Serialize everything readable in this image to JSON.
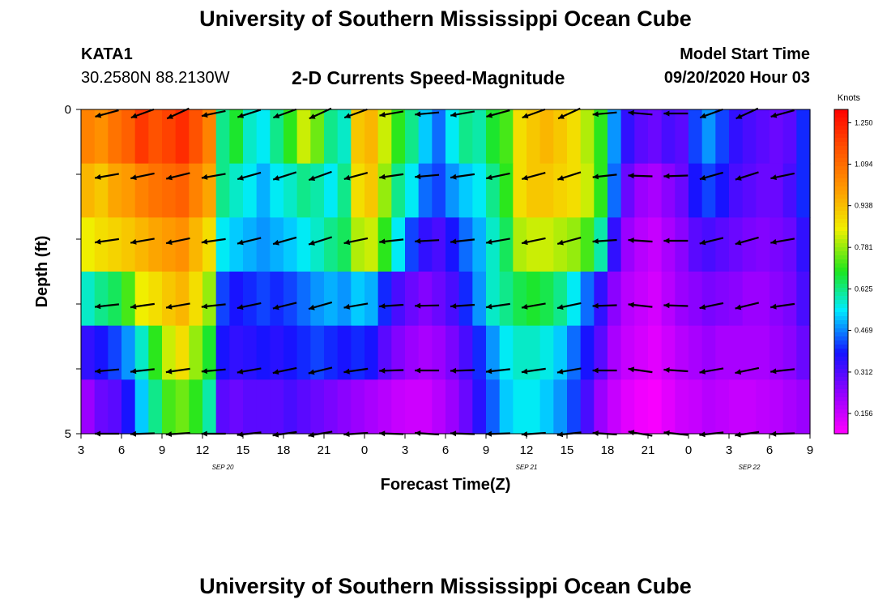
{
  "header": {
    "title": "University of Southern Mississippi Ocean Cube",
    "station_id": "KATA1",
    "coords": "30.2580N 88.2130W",
    "plot_title": "2-D Currents Speed-Magnitude",
    "model_start_label": "Model Start Time",
    "model_start_value": "09/20/2020 Hour 03"
  },
  "footer": {
    "title": "University of Southern Mississippi Ocean Cube"
  },
  "chart_data": {
    "type": "heatmap",
    "title": "2-D Currents Speed-Magnitude",
    "xlabel": "Forecast Time(Z)",
    "ylabel": "Depth (ft)",
    "x_ticks": [
      "3",
      "6",
      "9",
      "12",
      "15",
      "18",
      "21",
      "0",
      "3",
      "6",
      "9",
      "12",
      "15",
      "18",
      "21",
      "0",
      "3",
      "6",
      "9"
    ],
    "date_labels": [
      {
        "label": "SEP 20",
        "hour_index": 3.5
      },
      {
        "label": "SEP 21",
        "hour_index": 11
      },
      {
        "label": "SEP 22",
        "hour_index": 16.5
      }
    ],
    "y_ticks": [
      "0",
      "5"
    ],
    "ylim": [
      0,
      5
    ],
    "xlim_hours": [
      0,
      54
    ],
    "depth_bins": 5,
    "colorbar": {
      "units": "Knots",
      "range": [
        0.08,
        1.3
      ],
      "ticks": [
        "1.250",
        "1.094",
        "0.938",
        "0.781",
        "0.625",
        "0.469",
        "0.312",
        "0.156"
      ],
      "tick_values": [
        1.25,
        1.094,
        0.938,
        0.781,
        0.625,
        0.469,
        0.312,
        0.156
      ]
    },
    "speed_knots": [
      [
        1.05,
        1.02,
        1.08,
        1.12,
        1.2,
        1.15,
        1.18,
        1.22,
        1.15,
        1.05,
        0.62,
        0.68,
        0.58,
        0.55,
        0.62,
        0.7,
        0.82,
        0.75,
        0.62,
        0.58,
        0.92,
        0.95,
        0.82,
        0.7,
        0.62,
        0.52,
        0.45,
        0.55,
        0.62,
        0.6,
        0.68,
        0.72,
        0.88,
        0.92,
        0.95,
        0.92,
        0.88,
        0.8,
        0.7,
        0.48,
        0.35,
        0.3,
        0.28,
        0.32,
        0.3,
        0.42,
        0.48,
        0.42,
        0.35,
        0.32,
        0.3,
        0.28,
        0.3,
        0.4
      ],
      [
        0.95,
        0.92,
        0.98,
        1.0,
        1.05,
        1.08,
        1.1,
        1.12,
        1.05,
        0.98,
        0.62,
        0.58,
        0.55,
        0.5,
        0.55,
        0.58,
        0.62,
        0.6,
        0.55,
        0.62,
        0.88,
        0.92,
        0.78,
        0.62,
        0.55,
        0.45,
        0.42,
        0.48,
        0.52,
        0.55,
        0.62,
        0.7,
        0.88,
        0.92,
        0.92,
        0.9,
        0.88,
        0.82,
        0.7,
        0.45,
        0.28,
        0.22,
        0.2,
        0.24,
        0.28,
        0.38,
        0.42,
        0.38,
        0.32,
        0.3,
        0.28,
        0.28,
        0.32,
        0.4
      ],
      [
        0.85,
        0.88,
        0.9,
        0.92,
        0.95,
        0.98,
        1.0,
        1.02,
        0.95,
        0.88,
        0.55,
        0.52,
        0.5,
        0.48,
        0.5,
        0.52,
        0.55,
        0.58,
        0.62,
        0.65,
        0.8,
        0.82,
        0.7,
        0.55,
        0.42,
        0.35,
        0.32,
        0.38,
        0.45,
        0.5,
        0.58,
        0.65,
        0.8,
        0.82,
        0.82,
        0.8,
        0.78,
        0.72,
        0.6,
        0.35,
        0.22,
        0.18,
        0.16,
        0.2,
        0.24,
        0.3,
        0.32,
        0.3,
        0.28,
        0.26,
        0.25,
        0.26,
        0.28,
        0.35
      ],
      [
        0.58,
        0.62,
        0.65,
        0.72,
        0.85,
        0.88,
        0.92,
        0.95,
        0.88,
        0.78,
        0.42,
        0.38,
        0.4,
        0.42,
        0.4,
        0.42,
        0.45,
        0.48,
        0.5,
        0.48,
        0.52,
        0.5,
        0.4,
        0.32,
        0.28,
        0.25,
        0.28,
        0.32,
        0.4,
        0.48,
        0.58,
        0.62,
        0.66,
        0.68,
        0.66,
        0.62,
        0.55,
        0.45,
        0.35,
        0.24,
        0.18,
        0.16,
        0.14,
        0.18,
        0.22,
        0.24,
        0.26,
        0.25,
        0.24,
        0.22,
        0.22,
        0.24,
        0.26,
        0.32
      ],
      [
        0.35,
        0.38,
        0.42,
        0.48,
        0.58,
        0.7,
        0.82,
        0.88,
        0.78,
        0.68,
        0.38,
        0.35,
        0.36,
        0.38,
        0.36,
        0.38,
        0.4,
        0.42,
        0.4,
        0.38,
        0.4,
        0.38,
        0.3,
        0.25,
        0.22,
        0.2,
        0.22,
        0.26,
        0.32,
        0.4,
        0.48,
        0.55,
        0.58,
        0.58,
        0.56,
        0.52,
        0.45,
        0.38,
        0.3,
        0.2,
        0.16,
        0.14,
        0.12,
        0.15,
        0.18,
        0.2,
        0.22,
        0.2,
        0.2,
        0.2,
        0.2,
        0.22,
        0.24,
        0.28
      ],
      [
        0.22,
        0.28,
        0.3,
        0.38,
        0.52,
        0.62,
        0.72,
        0.75,
        0.7,
        0.6,
        0.3,
        0.28,
        0.3,
        0.3,
        0.3,
        0.32,
        0.3,
        0.28,
        0.26,
        0.24,
        0.22,
        0.2,
        0.18,
        0.16,
        0.15,
        0.15,
        0.18,
        0.22,
        0.28,
        0.36,
        0.44,
        0.52,
        0.55,
        0.55,
        0.52,
        0.48,
        0.42,
        0.32,
        0.22,
        0.16,
        0.12,
        0.1,
        0.09,
        0.12,
        0.15,
        0.16,
        0.18,
        0.17,
        0.16,
        0.16,
        0.17,
        0.18,
        0.2,
        0.22
      ]
    ],
    "vector_direction_deg": [
      [
        195,
        200,
        205,
        192,
        198,
        200,
        205,
        200,
        190,
        185,
        190,
        195,
        200,
        205,
        185,
        175,
        180,
        200,
        205,
        195
      ],
      [
        190,
        192,
        194,
        190,
        196,
        198,
        200,
        195,
        188,
        185,
        188,
        192,
        195,
        198,
        186,
        178,
        182,
        196,
        198,
        192
      ],
      [
        188,
        190,
        192,
        188,
        194,
        196,
        198,
        192,
        186,
        183,
        186,
        190,
        192,
        195,
        184,
        176,
        180,
        194,
        196,
        190
      ],
      [
        186,
        188,
        190,
        186,
        192,
        194,
        196,
        190,
        184,
        181,
        184,
        188,
        190,
        192,
        182,
        174,
        178,
        192,
        194,
        188
      ],
      [
        185,
        186,
        188,
        185,
        190,
        192,
        194,
        188,
        182,
        180,
        182,
        186,
        188,
        190,
        180,
        172,
        176,
        190,
        192,
        186
      ],
      [
        180,
        182,
        184,
        180,
        186,
        188,
        190,
        184,
        178,
        176,
        178,
        182,
        184,
        186,
        176,
        170,
        174,
        186,
        188,
        182
      ]
    ]
  }
}
